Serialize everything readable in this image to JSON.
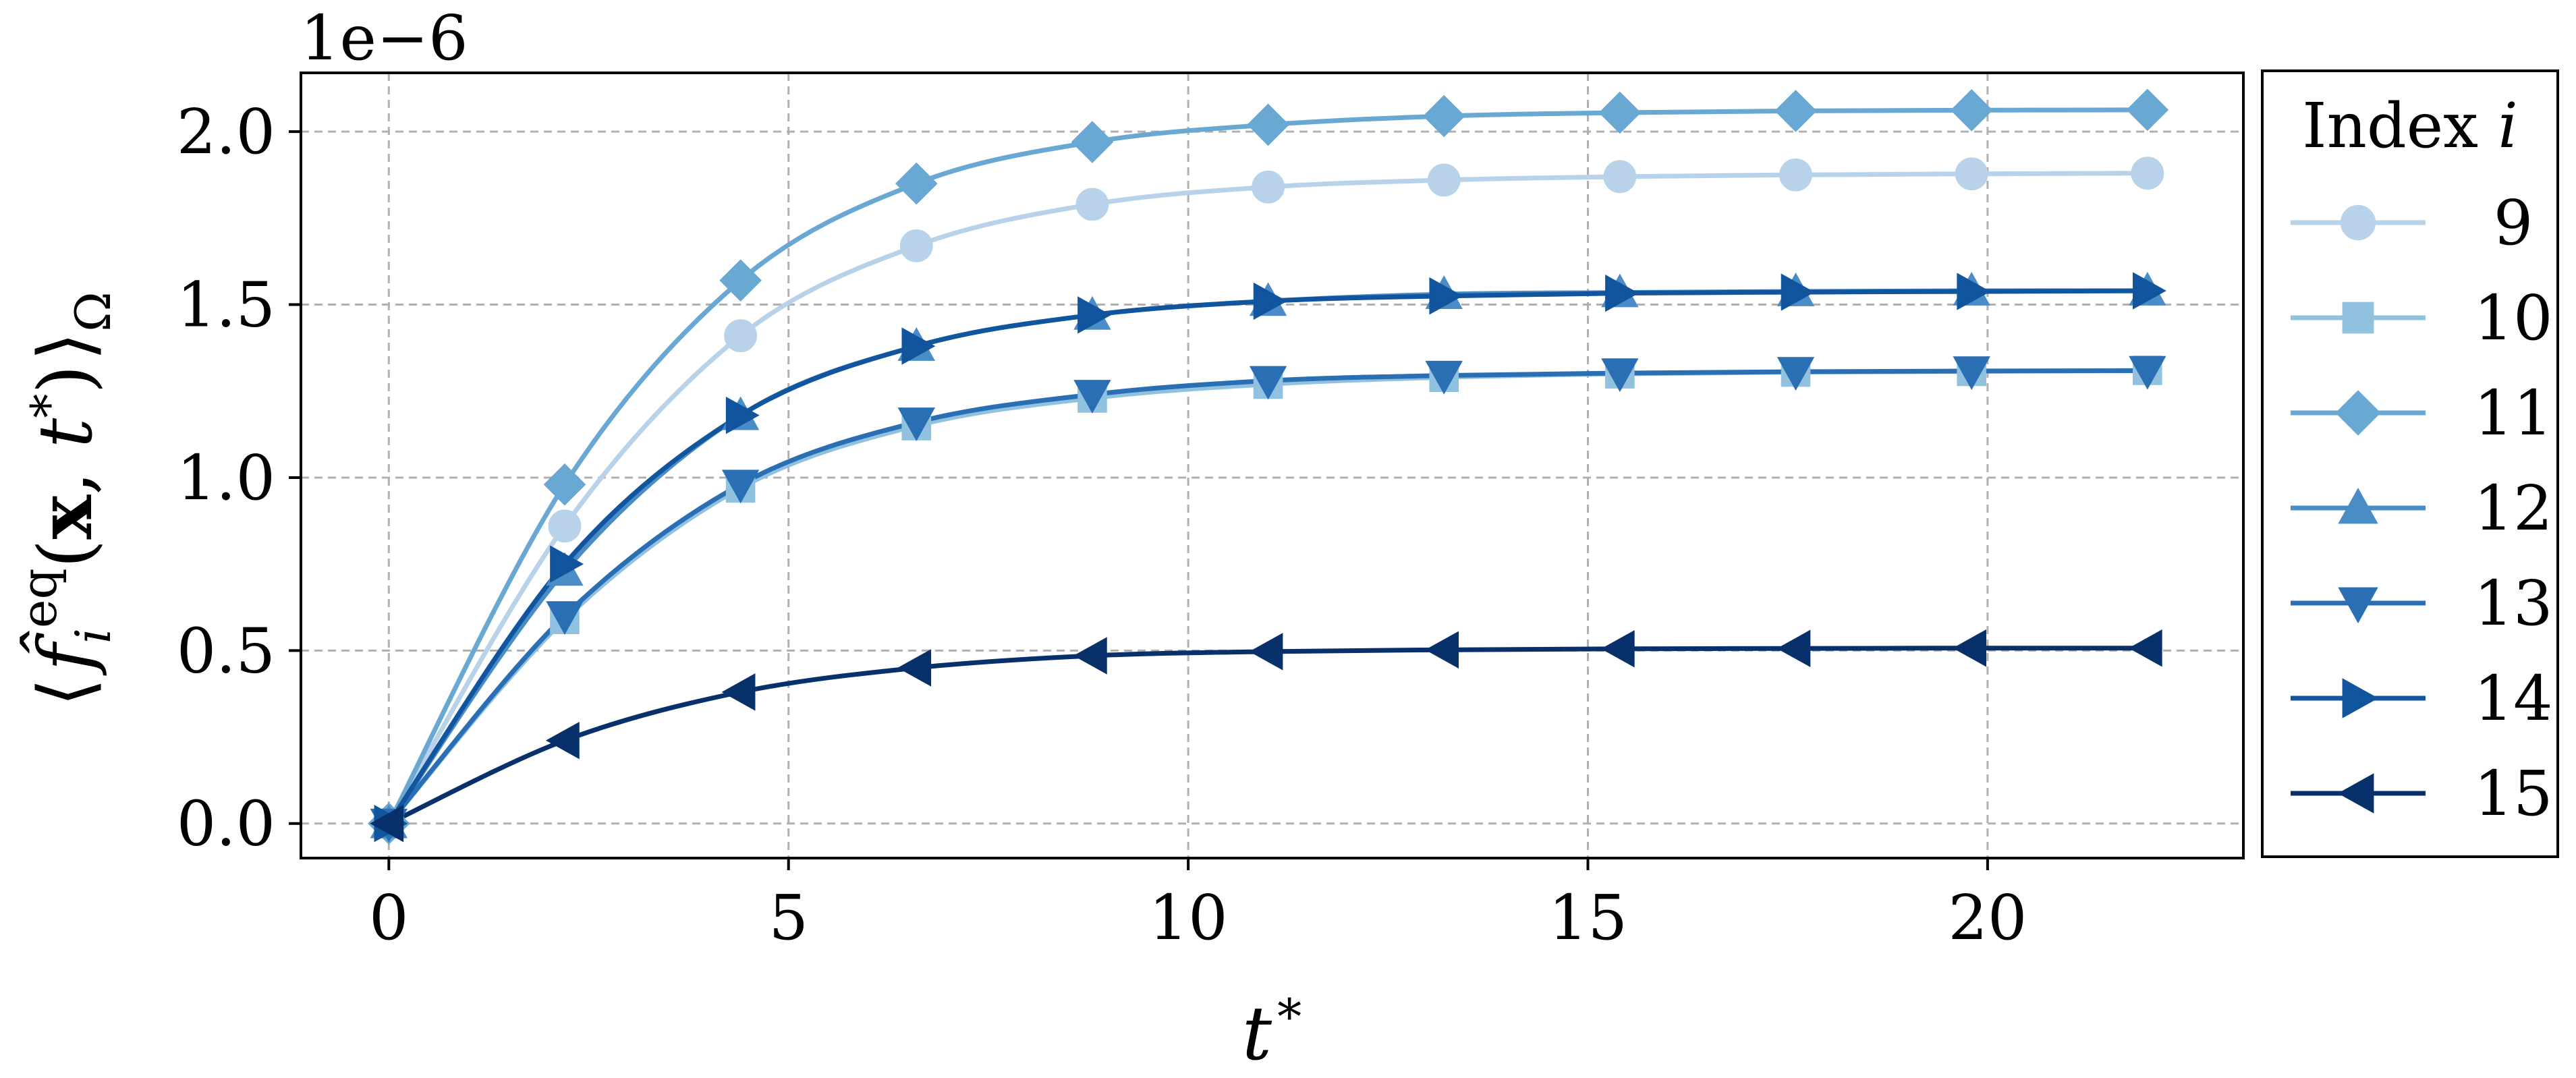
{
  "chart_data": {
    "type": "line",
    "offset_label": "1e−6",
    "xlabel": "t *",
    "ylabel": "⟨ f̂ᵢ^eq(x, t *) ⟩Ω",
    "xlim": [
      -1.1,
      23.2
    ],
    "ylim": [
      -1e-07,
      2.17e-06
    ],
    "x_ticks": [
      0,
      5,
      10,
      15,
      20
    ],
    "x_tick_labels": [
      "0",
      "5",
      "10",
      "15",
      "20"
    ],
    "y_ticks": [
      0.0,
      5e-07,
      1e-06,
      1.5e-06,
      2e-06
    ],
    "y_tick_labels": [
      "0.0",
      "0.5",
      "1.0",
      "1.5",
      "2.0"
    ],
    "grid": true,
    "legend": {
      "title": "Index i",
      "placement": "outside-right"
    },
    "x": [
      0,
      2.2,
      4.4,
      6.6,
      8.8,
      11.0,
      13.2,
      15.4,
      17.6,
      19.8,
      22.0
    ],
    "series": [
      {
        "name": "9",
        "marker": "circle",
        "color": "#b8d3e9",
        "values": [
          0,
          8.6e-07,
          1.41e-06,
          1.67e-06,
          1.79e-06,
          1.84e-06,
          1.86e-06,
          1.87e-06,
          1.875e-06,
          1.878e-06,
          1.88e-06
        ]
      },
      {
        "name": "10",
        "marker": "square",
        "color": "#90c2df",
        "values": [
          0,
          5.9e-07,
          9.7e-07,
          1.15e-06,
          1.23e-06,
          1.27e-06,
          1.29e-06,
          1.3e-06,
          1.305e-06,
          1.307e-06,
          1.31e-06
        ]
      },
      {
        "name": "11",
        "marker": "diamond",
        "color": "#69a8d3",
        "values": [
          0,
          9.8e-07,
          1.57e-06,
          1.85e-06,
          1.97e-06,
          2.02e-06,
          2.045e-06,
          2.055e-06,
          2.06e-06,
          2.062e-06,
          2.063e-06
        ]
      },
      {
        "name": "12",
        "marker": "triangle-up",
        "color": "#4a8cc5",
        "values": [
          0,
          7.3e-07,
          1.18e-06,
          1.38e-06,
          1.47e-06,
          1.51e-06,
          1.53e-06,
          1.535e-06,
          1.538e-06,
          1.54e-06,
          1.54e-06
        ]
      },
      {
        "name": "13",
        "marker": "triangle-down",
        "color": "#2a6fb4",
        "values": [
          0,
          6e-07,
          9.8e-07,
          1.16e-06,
          1.24e-06,
          1.28e-06,
          1.295e-06,
          1.302e-06,
          1.306e-06,
          1.308e-06,
          1.309e-06
        ]
      },
      {
        "name": "14",
        "marker": "triangle-right",
        "color": "#11559e",
        "values": [
          0,
          7.5e-07,
          1.18e-06,
          1.38e-06,
          1.47e-06,
          1.51e-06,
          1.525e-06,
          1.533e-06,
          1.536e-06,
          1.538e-06,
          1.54e-06
        ]
      },
      {
        "name": "15",
        "marker": "triangle-left",
        "color": "#08306b",
        "values": [
          0,
          2.4e-07,
          3.8e-07,
          4.5e-07,
          4.85e-07,
          4.97e-07,
          5.02e-07,
          5.05e-07,
          5.06e-07,
          5.07e-07,
          5.07e-07
        ]
      }
    ]
  }
}
